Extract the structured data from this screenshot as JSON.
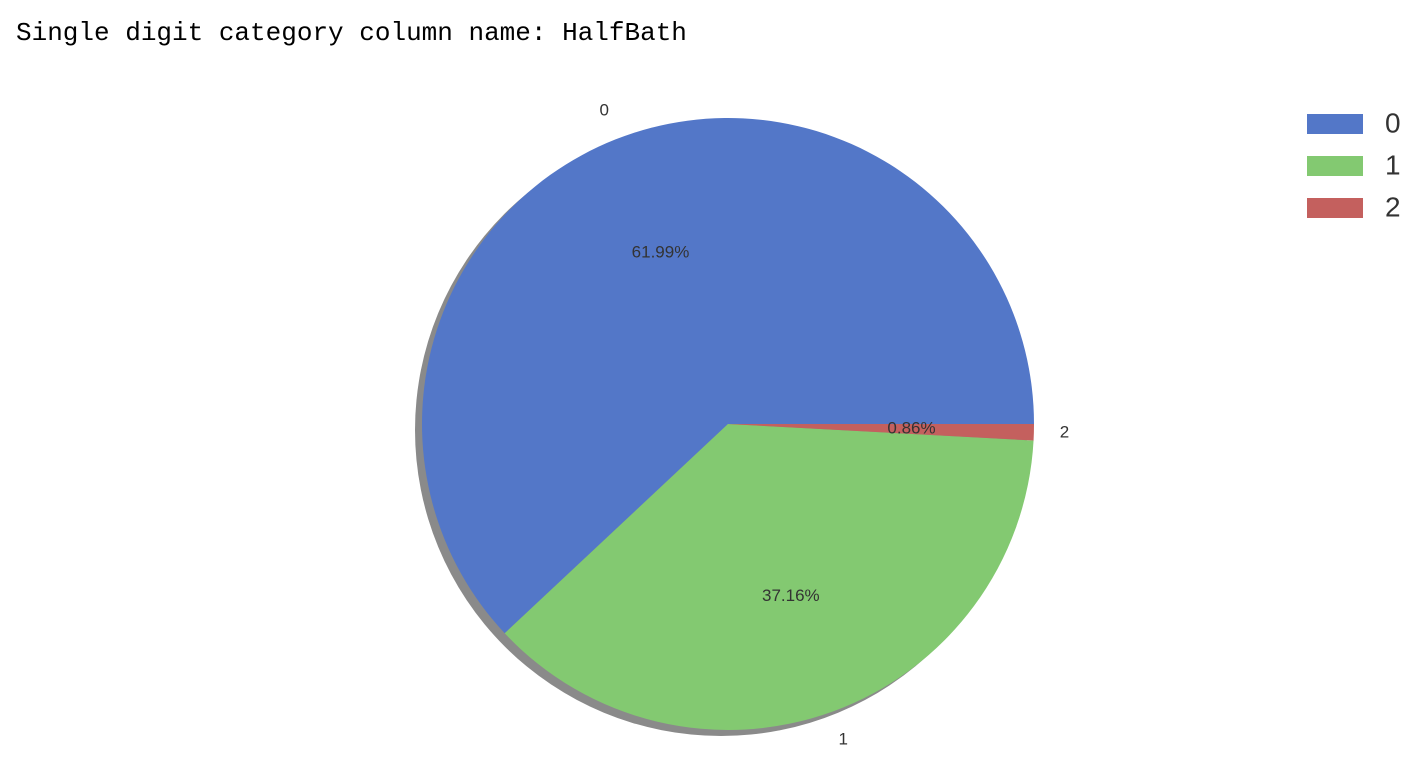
{
  "output": {
    "header_text": "Single digit category column name: HalfBath"
  },
  "chart_data": {
    "type": "pie",
    "title": "",
    "categories": [
      "0",
      "1",
      "2"
    ],
    "values": [
      61.99,
      37.16,
      0.86
    ],
    "value_labels": [
      "61.99%",
      "37.16%",
      "0.86%"
    ],
    "colors": [
      "#5377C8",
      "#83C971",
      "#C4605E"
    ],
    "shadow": true,
    "start_angle_deg": 0,
    "direction": "counterclockwise",
    "legend": {
      "position": "top-right",
      "entries": [
        "0",
        "1",
        "2"
      ]
    }
  }
}
